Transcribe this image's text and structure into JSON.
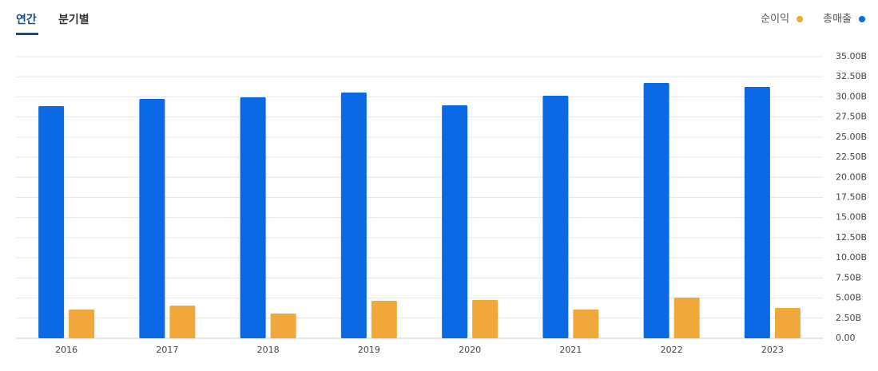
{
  "tabs": [
    "연간",
    "분기별"
  ],
  "chart_data": {
    "type": "bar",
    "categories": [
      "2016",
      "2017",
      "2018",
      "2019",
      "2020",
      "2021",
      "2022",
      "2023"
    ],
    "series": [
      {
        "name": "총매출",
        "color": "#0b69e3",
        "values": [
          28.85,
          29.74,
          29.94,
          30.54,
          28.95,
          30.14,
          31.73,
          31.23
        ]
      },
      {
        "name": "순이익",
        "color": "#f0a83a",
        "values": [
          3.57,
          4.07,
          3.07,
          4.66,
          4.76,
          3.57,
          5.06,
          3.77
        ]
      }
    ],
    "ylim": [
      0,
      35
    ],
    "yticks": [
      {
        "value": 0,
        "label": "0.00"
      },
      {
        "value": 2.5,
        "label": "2.50B"
      },
      {
        "value": 5,
        "label": "5.00B"
      },
      {
        "value": 7.5,
        "label": "7.50B"
      },
      {
        "value": 10,
        "label": "10.00B"
      },
      {
        "value": 12.5,
        "label": "12.50B"
      },
      {
        "value": 15,
        "label": "15.00B"
      },
      {
        "value": 17.5,
        "label": "17.50B"
      },
      {
        "value": 20,
        "label": "20.00B"
      },
      {
        "value": 22.5,
        "label": "22.50B"
      },
      {
        "value": 25,
        "label": "25.00B"
      },
      {
        "value": 27.5,
        "label": "27.50B"
      },
      {
        "value": 30,
        "label": "30.00B"
      },
      {
        "value": 32.5,
        "label": "32.50B"
      },
      {
        "value": 35,
        "label": "35.00B"
      }
    ],
    "grid": true,
    "legend": "top-right"
  }
}
